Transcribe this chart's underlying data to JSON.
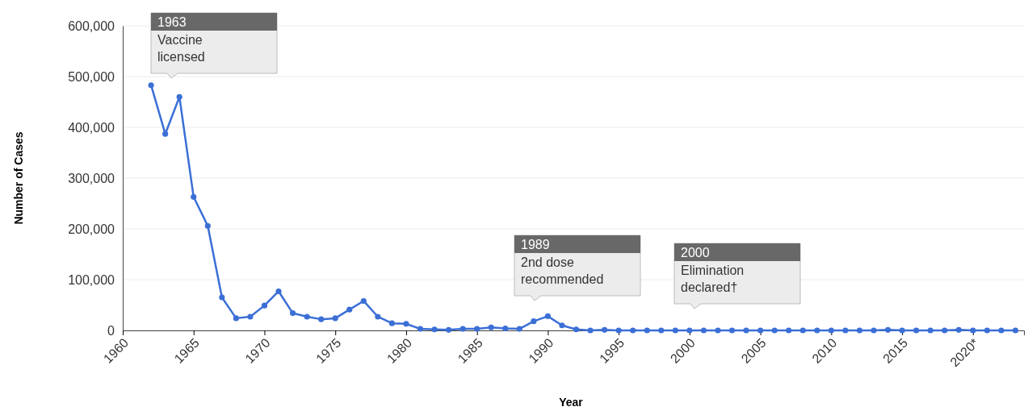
{
  "chart_data": {
    "type": "line",
    "xlabel": "Year",
    "ylabel": "Number of Cases",
    "x": [
      1962,
      1963,
      1964,
      1965,
      1966,
      1967,
      1968,
      1969,
      1970,
      1971,
      1972,
      1973,
      1974,
      1975,
      1976,
      1977,
      1978,
      1979,
      1980,
      1981,
      1982,
      1983,
      1984,
      1985,
      1986,
      1987,
      1988,
      1989,
      1990,
      1991,
      1992,
      1993,
      1994,
      1995,
      1996,
      1997,
      1998,
      1999,
      2000,
      2001,
      2002,
      2003,
      2004,
      2005,
      2006,
      2007,
      2008,
      2009,
      2010,
      2011,
      2012,
      2013,
      2014,
      2015,
      2016,
      2017,
      2018,
      2019,
      2020,
      2021,
      2022,
      2023
    ],
    "series": [
      {
        "color": "#3b6fd6",
        "values": [
          483000,
          387000,
          460000,
          263000,
          206000,
          65000,
          24000,
          27000,
          49000,
          77000,
          34000,
          27000,
          22000,
          24000,
          41000,
          58000,
          27000,
          14000,
          13000,
          3000,
          2000,
          1000,
          3000,
          3000,
          6000,
          4000,
          3000,
          18000,
          28000,
          10000,
          2000,
          0,
          1000,
          0,
          0,
          0,
          0,
          0,
          0,
          0,
          0,
          0,
          0,
          0,
          0,
          0,
          0,
          0,
          0,
          0,
          0,
          0,
          1000,
          0,
          0,
          0,
          0,
          1000,
          0,
          0,
          0,
          0
        ]
      }
    ],
    "xlim": [
      1960,
      2023.6
    ],
    "ylim": [
      0,
      600000
    ],
    "xticks": [
      1960,
      1965,
      1970,
      1975,
      1980,
      1985,
      1990,
      1995,
      2000,
      2005,
      2010,
      2015,
      {
        "value": 2020,
        "label": "2020*"
      }
    ],
    "yticks": [
      {
        "value": 0,
        "label": "0"
      },
      {
        "value": 100000,
        "label": "100,000"
      },
      {
        "value": 200000,
        "label": "200,000"
      },
      {
        "value": 300000,
        "label": "300,000"
      },
      {
        "value": 400000,
        "label": "400,000"
      },
      {
        "value": 500000,
        "label": "500,000"
      },
      {
        "value": 600000,
        "label": "600,000"
      }
    ],
    "grid": "y",
    "marker": "circle",
    "line_style": "solid",
    "annotations": [
      "1963\nVaccine\nlicensed",
      "1989\n2nd dose\nrecommended",
      "2000\nElimination\ndeclared†"
    ]
  }
}
